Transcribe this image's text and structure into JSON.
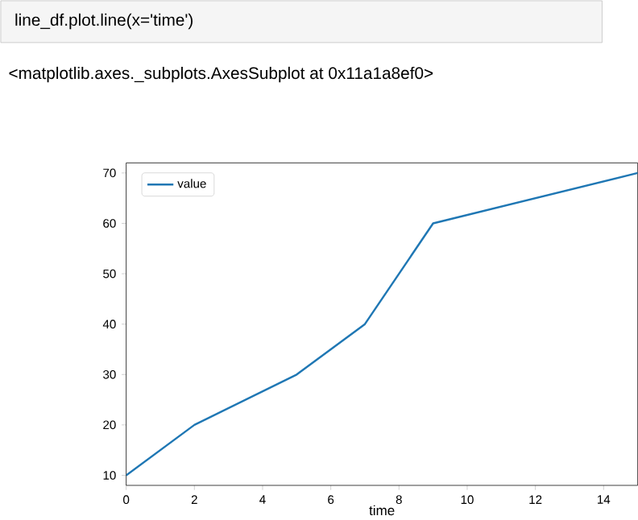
{
  "chart_data": {
    "type": "line",
    "xlabel": "time",
    "annotations": [
      "line_df.plot.line(x='time')",
      "<matplotlib.axes._subplots.AxesSubplot at 0x11a1a8ef0>"
    ],
    "series": [
      {
        "name": "value",
        "color": "#1f77b4",
        "x": [
          0,
          2,
          5,
          7,
          9,
          15
        ],
        "values": [
          10,
          20,
          30,
          40,
          60,
          70
        ]
      }
    ],
    "xlim": [
      0,
      15
    ],
    "ylim": [
      8,
      72
    ],
    "xticks": [
      0,
      2,
      4,
      6,
      8,
      10,
      12,
      14
    ],
    "yticks": [
      10,
      20,
      30,
      40,
      50,
      60,
      70
    ],
    "legend": "top left",
    "marker": "none",
    "line_style": "solid",
    "grid": false
  }
}
